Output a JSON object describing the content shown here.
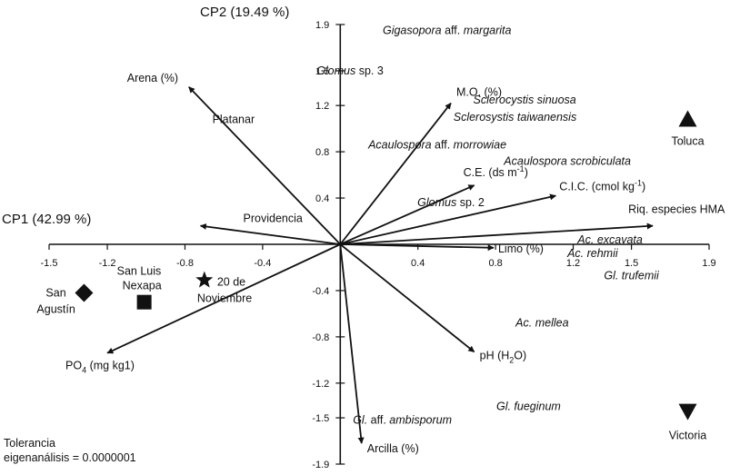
{
  "chart_data": {
    "type": "scatter",
    "title": "",
    "xlabel": "CP1 (42.99 %)",
    "ylabel": "CP2 (19.49 %)",
    "xlim": [
      -1.5,
      1.9
    ],
    "ylim": [
      -1.9,
      1.9
    ],
    "x_ticks": [
      "-1.5",
      "-1.2",
      "-0.8",
      "-0.4",
      "0.4",
      "0.8",
      "1.2",
      "1.5",
      "1.9"
    ],
    "x_tick_values": [
      -1.5,
      -1.2,
      -0.8,
      -0.4,
      0.4,
      0.8,
      1.2,
      1.5,
      1.9
    ],
    "y_ticks": [
      "1.9",
      "1.5",
      "1.2",
      "0.8",
      "0.4",
      "-0.4",
      "-0.8",
      "-1.2",
      "-1.5",
      "-1.9"
    ],
    "y_tick_values": [
      1.9,
      1.5,
      1.2,
      0.8,
      0.4,
      -0.4,
      -0.8,
      -1.2,
      -1.5,
      -1.9
    ],
    "grid": false,
    "vectors": [
      {
        "label": "Arena (%)",
        "x": -0.78,
        "y": 1.36
      },
      {
        "label": "M.O. (%)",
        "x": 0.57,
        "y": 1.22
      },
      {
        "label": "C.E. (ds m",
        "sup": "-1",
        "suffix": ")",
        "x": 0.69,
        "y": 0.51
      },
      {
        "label": "C.I.C. (cmol kg",
        "sup": "-1",
        "suffix": ")",
        "x": 1.11,
        "y": 0.42
      },
      {
        "label": "Riq. especies HMA",
        "x": 1.61,
        "y": 0.16
      },
      {
        "label": "Limo (%)",
        "x": 0.79,
        "y": -0.03
      },
      {
        "label": "pH (H",
        "sub": "2",
        "suffix": "O)",
        "x": 0.69,
        "y": -0.93
      },
      {
        "label": "Arcilla (%)",
        "x": 0.11,
        "y": -1.72
      },
      {
        "label": "PO",
        "sub": "4",
        "suffix": " (mg kg1)",
        "x": -1.2,
        "y": -0.94
      },
      {
        "label": "Providencia",
        "x": -0.72,
        "y": 0.16
      }
    ],
    "sites": [
      {
        "label": "Toluca",
        "marker": "triangle-up",
        "x": 1.79,
        "y": 1.08
      },
      {
        "label": "Victoria",
        "marker": "triangle-down",
        "x": 1.79,
        "y": -1.45
      },
      {
        "label": "San Agustín",
        "marker": "diamond",
        "x": -1.32,
        "y": -0.42
      },
      {
        "label": "San Luis Nexapa",
        "marker": "square",
        "x": -1.01,
        "y": -0.5
      },
      {
        "label": "20 de Noviembre",
        "marker": "star",
        "x": -0.7,
        "y": -0.31
      },
      {
        "label": "Platanar",
        "marker": "none",
        "x": -0.55,
        "y": 1.05
      }
    ],
    "species": [
      {
        "label": "Gigasopora",
        "suffix": " aff. ",
        "label2": "margarita",
        "x": 0.55,
        "y": 1.85
      },
      {
        "label": "Glomus",
        "suffix": " sp. 3",
        "x": 0.05,
        "y": 1.5
      },
      {
        "label": "Sclerocystis sinuosa",
        "x": 0.95,
        "y": 1.25
      },
      {
        "label": "Sclerosystis taiwanensis",
        "x": 0.9,
        "y": 1.1
      },
      {
        "label": "Acaulospora",
        "suffix": " aff. ",
        "label2": "morrowiae",
        "x": 0.5,
        "y": 0.86
      },
      {
        "label": "Acaulospora scrobiculata",
        "x": 1.17,
        "y": 0.72
      },
      {
        "label": "Glomus",
        "suffix": " sp. 2",
        "x": 0.57,
        "y": 0.36
      },
      {
        "label": "Ac. excavata",
        "x": 1.39,
        "y": 0.04
      },
      {
        "label": "Ac. rehmii",
        "x": 1.3,
        "y": -0.08
      },
      {
        "label": "Gl. trufemii",
        "x": 1.5,
        "y": -0.27
      },
      {
        "label": "Ac. mellea",
        "x": 1.04,
        "y": -0.68
      },
      {
        "label": "Gl. fueginum",
        "x": 0.97,
        "y": -1.4
      },
      {
        "label": "Gl.",
        "suffix": " aff. ",
        "label2": "ambisporum",
        "x": 0.32,
        "y": -1.52
      }
    ],
    "note": [
      "Tolerancia",
      "eigenanálisis = 0.0000001"
    ]
  }
}
